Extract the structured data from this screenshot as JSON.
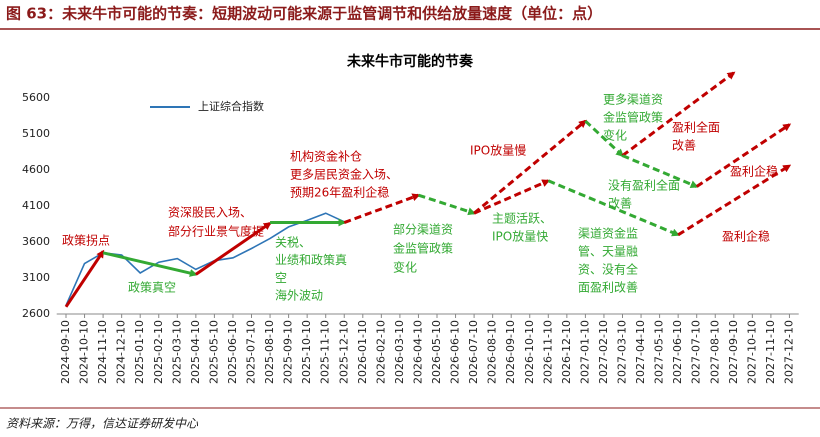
{
  "header": {
    "title": "图 63：未来牛市可能的节奏：短期波动可能来源于监管调节和供给放量速度（单位：点）"
  },
  "chart_data": {
    "type": "line",
    "title": "未来牛市可能的节奏",
    "categories": [
      "2024-09-10",
      "2024-10-10",
      "2024-11-10",
      "2024-12-10",
      "2025-01-10",
      "2025-02-10",
      "2025-03-10",
      "2025-04-10",
      "2025-05-10",
      "2025-06-10",
      "2025-07-10",
      "2025-08-10",
      "2025-09-10",
      "2025-10-10",
      "2025-11-10",
      "2025-12-10",
      "2026-01-10",
      "2026-02-10",
      "2026-03-10",
      "2026-04-10",
      "2026-05-10",
      "2026-06-10",
      "2026-07-10",
      "2026-08-10",
      "2026-09-10",
      "2026-10-10",
      "2026-11-10",
      "2026-12-10",
      "2027-01-10",
      "2027-02-10",
      "2027-03-10",
      "2027-04-10",
      "2027-05-10",
      "2027-06-10",
      "2027-07-10",
      "2027-08-10",
      "2027-09-10",
      "2027-10-10",
      "2027-11-10",
      "2027-12-10"
    ],
    "series": [
      {
        "name": "上证综合指数",
        "color": "#2e75b6",
        "values": [
          2720,
          3300,
          3450,
          3420,
          3170,
          3320,
          3370,
          3220,
          3340,
          3380,
          3510,
          3650,
          3810,
          3900,
          4000,
          3880,
          null,
          null,
          null,
          null,
          null,
          null,
          null,
          null,
          null,
          null,
          null,
          null,
          null,
          null,
          null,
          null,
          null,
          null,
          null,
          null,
          null,
          null,
          null,
          null
        ]
      }
    ],
    "ylim": [
      2600,
      6100
    ],
    "yticks": [
      2600,
      3100,
      3600,
      4100,
      4600,
      5100,
      5600
    ],
    "arrows": [
      {
        "x0": "2024-09-10",
        "y0": 2700,
        "x1": "2024-11-10",
        "y1": 3470,
        "color": "#c00000",
        "dashed": false
      },
      {
        "x0": "2024-11-10",
        "y0": 3450,
        "x1": "2025-04-10",
        "y1": 3150,
        "color": "#33a933",
        "dashed": false
      },
      {
        "x0": "2025-04-10",
        "y0": 3150,
        "x1": "2025-08-10",
        "y1": 3860,
        "color": "#c00000",
        "dashed": false
      },
      {
        "x0": "2025-08-10",
        "y0": 3870,
        "x1": "2025-12-10",
        "y1": 3870,
        "color": "#33a933",
        "dashed": false
      },
      {
        "x0": "2025-12-10",
        "y0": 3870,
        "x1": "2026-04-10",
        "y1": 4250,
        "color": "#c00000",
        "dashed": true
      },
      {
        "x0": "2026-04-10",
        "y0": 4250,
        "x1": "2026-07-10",
        "y1": 4000,
        "color": "#33a933",
        "dashed": true
      },
      {
        "x0": "2026-07-10",
        "y0": 4000,
        "x1": "2027-01-10",
        "y1": 5280,
        "color": "#c00000",
        "dashed": true
      },
      {
        "x0": "2026-07-10",
        "y0": 4000,
        "x1": "2026-11-10",
        "y1": 4450,
        "color": "#c00000",
        "dashed": true
      },
      {
        "x0": "2027-01-10",
        "y0": 5280,
        "x1": "2027-03-10",
        "y1": 4800,
        "color": "#33a933",
        "dashed": true
      },
      {
        "x0": "2027-03-10",
        "y0": 4800,
        "x1": "2027-09-10",
        "y1": 5950,
        "color": "#c00000",
        "dashed": true
      },
      {
        "x0": "2027-03-10",
        "y0": 4800,
        "x1": "2027-07-10",
        "y1": 4370,
        "color": "#33a933",
        "dashed": true
      },
      {
        "x0": "2027-07-10",
        "y0": 4370,
        "x1": "2027-12-10",
        "y1": 5230,
        "color": "#c00000",
        "dashed": true
      },
      {
        "x0": "2026-11-10",
        "y0": 4450,
        "x1": "2027-06-10",
        "y1": 3700,
        "color": "#33a933",
        "dashed": true
      },
      {
        "x0": "2027-06-10",
        "y0": 3700,
        "x1": "2027-12-10",
        "y1": 4660,
        "color": "#c00000",
        "dashed": true
      }
    ],
    "annotations": [
      {
        "lines": [
          "政策拐点"
        ],
        "color": "#c00000"
      },
      {
        "lines": [
          "资深股民入场、",
          "部分行业景气度提"
        ],
        "color": "#c00000"
      },
      {
        "lines": [
          "政策真空"
        ],
        "color": "#33a933"
      },
      {
        "lines": [
          "机构资金补仓",
          "更多居民资金入场、",
          "预期26年盈利企稳"
        ],
        "color": "#c00000"
      },
      {
        "lines": [
          "关税、",
          "业绩和政策真",
          "空",
          "海外波动"
        ],
        "color": "#33a933"
      },
      {
        "lines": [
          "部分渠道资",
          "金监管政策",
          "变化"
        ],
        "color": "#33a933"
      },
      {
        "lines": [
          "IPO放量慢"
        ],
        "color": "#c00000"
      },
      {
        "lines": [
          "主题活跃、",
          "IPO放量快"
        ],
        "color": "#33a933"
      },
      {
        "lines": [
          "更多渠道资",
          "金监管政策",
          "变化"
        ],
        "color": "#33a933"
      },
      {
        "lines": [
          "盈利全面",
          "改善"
        ],
        "color": "#c00000"
      },
      {
        "lines": [
          "没有盈利全面",
          "改善"
        ],
        "color": "#33a933"
      },
      {
        "lines": [
          "盈利企稳"
        ],
        "color": "#c00000"
      },
      {
        "lines": [
          "渠道资金监",
          "管、天量融",
          "资、没有全",
          "面盈利改善"
        ],
        "color": "#33a933"
      },
      {
        "lines": [
          "盈利企稳"
        ],
        "color": "#c00000"
      }
    ]
  },
  "footer": {
    "source": "资料来源：万得，信达证券研发中心"
  }
}
